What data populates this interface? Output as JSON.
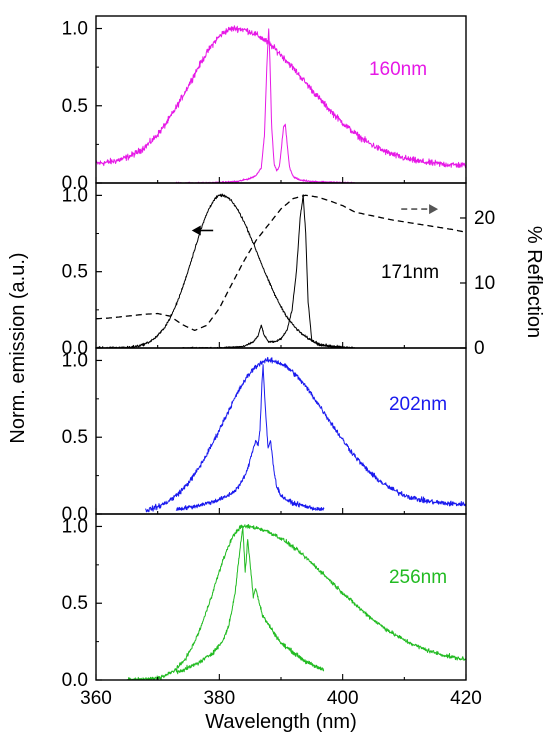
{
  "chart_data": [
    {
      "type": "line",
      "panel": 1,
      "label": "160nm",
      "color": "#e619e6",
      "xlim": [
        360,
        420
      ],
      "ylim": [
        0,
        1.1
      ],
      "xlabel": "Wavelength (nm)",
      "ylabel": "Norm. emission (a.u.)",
      "yticks": [
        "0.0",
        "0.5",
        "1.0"
      ],
      "series": [
        {
          "kind": "broad",
          "shape": [
            360,
            420,
            382.5,
            7.2,
            11.5,
            0.12,
            0.11
          ],
          "noise": 0.03
        },
        {
          "kind": "narrow",
          "x": [
            373,
            378,
            381,
            383,
            384,
            385,
            386,
            386.8,
            387.3,
            387.7,
            388.0,
            388.2,
            388.5,
            388.9,
            389.3,
            389.7,
            390.0,
            390.4,
            390.7,
            391.0,
            391.4,
            392.0,
            393,
            395,
            398,
            402
          ],
          "y": [
            0.0,
            0.0,
            0.005,
            0.01,
            0.02,
            0.03,
            0.05,
            0.1,
            0.3,
            0.75,
            1.0,
            0.8,
            0.35,
            0.12,
            0.08,
            0.1,
            0.2,
            0.36,
            0.38,
            0.25,
            0.1,
            0.04,
            0.02,
            0.01,
            0.005,
            0.0
          ],
          "noise": 0.008
        }
      ]
    },
    {
      "type": "line",
      "panel": 2,
      "label": "171nm",
      "color": "#000000",
      "xlim": [
        360,
        420
      ],
      "ylim": [
        0,
        1.1
      ],
      "yticks": [
        "0.0",
        "0.5",
        "1.0"
      ],
      "y2label": "% Reflection",
      "y2lim": [
        0,
        25
      ],
      "y2ticks": [
        "0",
        "10",
        "20"
      ],
      "series": [
        {
          "kind": "broad",
          "shape": [
            360,
            402,
            380.3,
            4.6,
            6.0,
            0.0,
            0.0
          ],
          "noise": 0.012
        },
        {
          "kind": "narrow",
          "x": [
            374,
            380,
            384,
            385.5,
            386.3,
            386.8,
            387.3,
            388,
            389,
            390,
            391,
            391.8,
            392.5,
            393.1,
            393.6,
            394.0,
            394.4,
            395,
            396,
            398,
            400,
            402
          ],
          "y": [
            0.0,
            0.0,
            0.01,
            0.04,
            0.08,
            0.15,
            0.08,
            0.04,
            0.04,
            0.06,
            0.12,
            0.25,
            0.5,
            0.85,
            1.0,
            0.75,
            0.3,
            0.05,
            0.02,
            0.01,
            0.005,
            0.0
          ],
          "noise": 0.008
        },
        {
          "kind": "reflection",
          "dashed": true,
          "x": [
            360,
            362,
            364,
            366,
            368,
            370,
            372,
            374,
            376,
            378,
            380,
            382,
            384,
            386,
            388,
            390,
            392,
            394,
            396,
            398,
            400,
            402,
            404,
            406,
            408,
            410,
            412,
            414,
            416,
            418,
            420
          ],
          "y": [
            4.5,
            4.6,
            4.8,
            5.0,
            5.2,
            5.3,
            4.9,
            3.6,
            2.7,
            3.5,
            6.1,
            9.8,
            13.4,
            16.6,
            19.0,
            21.4,
            23.0,
            23.5,
            23.2,
            22.6,
            21.9,
            20.9,
            20.5,
            20.1,
            19.7,
            19.4,
            19.1,
            18.8,
            18.5,
            18.2,
            17.8
          ]
        }
      ],
      "arrows": [
        {
          "direction": "left",
          "x": [
            379,
            376.5
          ],
          "y": 0.77
        },
        {
          "direction": "right",
          "x": [
            409.5,
            414.5
          ],
          "y": 0.91,
          "dashed": true
        }
      ]
    },
    {
      "type": "line",
      "panel": 3,
      "label": "202nm",
      "color": "#1a1aee",
      "xlim": [
        360,
        420
      ],
      "ylim": [
        0,
        1.1
      ],
      "yticks": [
        "0.0",
        "0.5",
        "1.0"
      ],
      "series": [
        {
          "kind": "broad",
          "shape": [
            368,
            420,
            388,
            7.3,
            9.5,
            0.0,
            0.06
          ],
          "noise": 0.025
        },
        {
          "kind": "narrow",
          "x": [
            373,
            376,
            379,
            381,
            382.5,
            383.5,
            384.5,
            385.3,
            385.9,
            386.3,
            386.6,
            386.9,
            387.1,
            387.3,
            387.6,
            387.9,
            388.3,
            388.8,
            389.3,
            390,
            391,
            392,
            394,
            396,
            397
          ],
          "y": [
            0.03,
            0.05,
            0.08,
            0.11,
            0.15,
            0.2,
            0.28,
            0.4,
            0.48,
            0.45,
            0.55,
            0.85,
            0.97,
            0.8,
            0.6,
            0.43,
            0.48,
            0.3,
            0.18,
            0.12,
            0.09,
            0.07,
            0.05,
            0.03,
            0.03
          ],
          "noise": 0.02
        }
      ]
    },
    {
      "type": "line",
      "panel": 4,
      "label": "256nm",
      "color": "#22bb22",
      "xlim": [
        360,
        420
      ],
      "ylim": [
        0,
        1.1
      ],
      "yticks": [
        "0.0",
        "0.5",
        "1.0"
      ],
      "xticks": [
        "360",
        "380",
        "400",
        "420"
      ],
      "series": [
        {
          "kind": "broad",
          "shape": [
            365,
            420,
            384,
            4.8,
            14.0,
            0.0,
            0.1
          ],
          "noise": 0.02
        },
        {
          "kind": "narrow",
          "x": [
            373,
            375,
            377,
            379,
            380.5,
            381.5,
            382.5,
            383.2,
            383.8,
            384.2,
            384.6,
            385.0,
            385.5,
            385.9,
            386.5,
            387,
            388,
            389,
            390,
            392,
            394,
            396,
            397
          ],
          "y": [
            0.05,
            0.08,
            0.12,
            0.18,
            0.25,
            0.35,
            0.55,
            0.8,
            1.0,
            0.7,
            0.92,
            0.75,
            0.55,
            0.6,
            0.5,
            0.42,
            0.36,
            0.3,
            0.24,
            0.18,
            0.12,
            0.08,
            0.07
          ],
          "noise": 0.02
        }
      ]
    }
  ]
}
